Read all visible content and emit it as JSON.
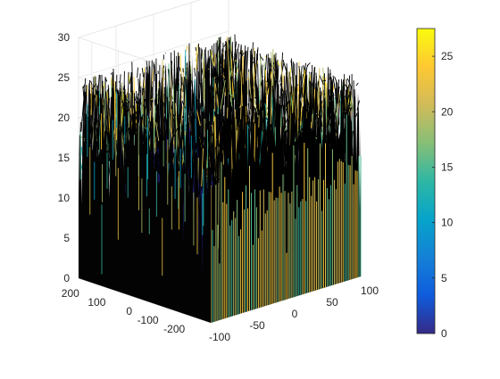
{
  "chart_data": {
    "type": "surface3d",
    "title": "",
    "xlabel": "",
    "ylabel": "",
    "zlabel": "",
    "x_ticks": [
      -100,
      -50,
      0,
      50,
      100
    ],
    "y_ticks": [
      -200,
      -100,
      0,
      100,
      200
    ],
    "z_ticks": [
      0,
      5,
      10,
      15,
      20,
      25,
      30
    ],
    "xlim": [
      -100,
      100
    ],
    "ylim": [
      -250,
      250
    ],
    "zlim": [
      0,
      30
    ],
    "grid": true,
    "colormap": "parula",
    "colorbar": {
      "placement": "right",
      "ticks": [
        0,
        5,
        10,
        15,
        20,
        25
      ],
      "range": [
        0,
        27.5
      ],
      "colors": [
        "#352a87",
        "#0f5cdd",
        "#1481d6",
        "#06a4ca",
        "#2eb7a4",
        "#87bf77",
        "#d1bb59",
        "#fec832",
        "#f9fb0e"
      ]
    },
    "surface": {
      "inner_box_x": [
        -75,
        75
      ],
      "inner_box_y": [
        -200,
        200
      ],
      "inner_height": 0,
      "rim_height_mean": 20,
      "rim_height_noise": 5,
      "edge_color": "#000000"
    }
  }
}
